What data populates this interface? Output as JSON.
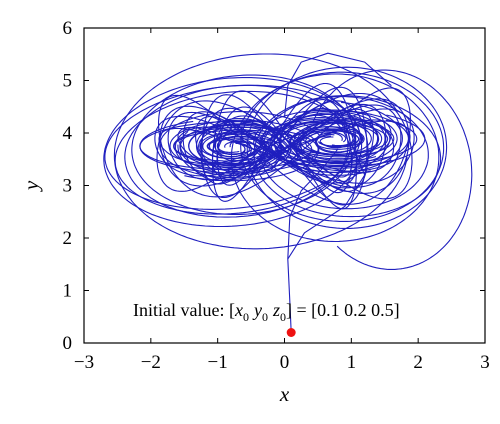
{
  "chart_data": {
    "type": "line",
    "title": "",
    "xlabel": "x",
    "ylabel": "y",
    "xlim": [
      -3,
      3
    ],
    "ylim": [
      0,
      6
    ],
    "xticks": [
      -3,
      -2,
      -1,
      0,
      1,
      2,
      3
    ],
    "yticks": [
      0,
      1,
      2,
      3,
      4,
      5,
      6
    ],
    "xtick_labels": [
      "−3",
      "−2",
      "−1",
      "0",
      "1",
      "2",
      "3"
    ],
    "ytick_labels": [
      "0",
      "1",
      "2",
      "3",
      "4",
      "5",
      "6"
    ],
    "grid": false,
    "line_color": "#1f1fbf",
    "marker_color": "#ee1111",
    "initial_point": {
      "x": 0.1,
      "y": 0.2
    },
    "annotation": {
      "prefix": "Initial value: [",
      "vars": [
        {
          "sym": "x",
          "sub": "0"
        },
        {
          "sym": "y",
          "sub": "0"
        },
        {
          "sym": "z",
          "sub": "0"
        }
      ],
      "suffix": "] = [0.1  0.2  0.5]"
    }
  }
}
